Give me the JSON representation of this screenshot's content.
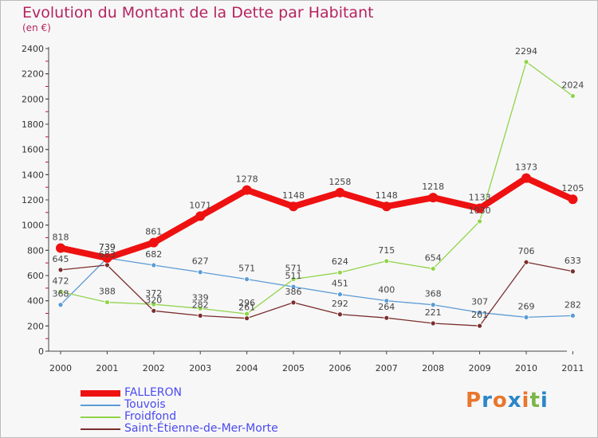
{
  "header": {
    "title": "Evolution du Montant de la Dette par Habitant",
    "subtitle": "(en €)"
  },
  "logo": {
    "text": "Proxiti",
    "colors": [
      "#e8762c",
      "#2b86c9",
      "#e8762c",
      "#2b86c9",
      "#e8762c",
      "#7ab648",
      "#2b86c9"
    ]
  },
  "chart_data": {
    "type": "line",
    "title": "Evolution du Montant de la Dette par Habitant",
    "subtitle": "(en €)",
    "x": [
      "2000",
      "2001",
      "2002",
      "2003",
      "2004",
      "2005",
      "2006",
      "2007",
      "2008",
      "2009",
      "2010",
      "2011"
    ],
    "ylim": [
      0,
      2400
    ],
    "yticks": [
      0,
      200,
      400,
      600,
      800,
      1000,
      1200,
      1400,
      1600,
      1800,
      2000,
      2200,
      2400
    ],
    "grid": false,
    "legend_position": "bottom-left",
    "series": [
      {
        "name": "FALLERON",
        "color": "#ee1111",
        "values": [
          818,
          739,
          861,
          1071,
          1278,
          1148,
          1258,
          1148,
          1218,
          1133,
          1373,
          1205
        ]
      },
      {
        "name": "Touvois",
        "color": "#5b9bd5",
        "values": [
          368,
          739,
          682,
          627,
          571,
          511,
          451,
          400,
          368,
          307,
          269,
          282
        ]
      },
      {
        "name": "Froidfond",
        "color": "#8fd44a",
        "values": [
          472,
          388,
          372,
          339,
          296,
          571,
          624,
          715,
          654,
          1030,
          2294,
          2024
        ]
      },
      {
        "name": "Saint-Étienne-de-Mer-Morte",
        "color": "#7a2e2e",
        "values": [
          645,
          683,
          320,
          282,
          261,
          386,
          292,
          264,
          221,
          201,
          706,
          633
        ]
      }
    ]
  }
}
